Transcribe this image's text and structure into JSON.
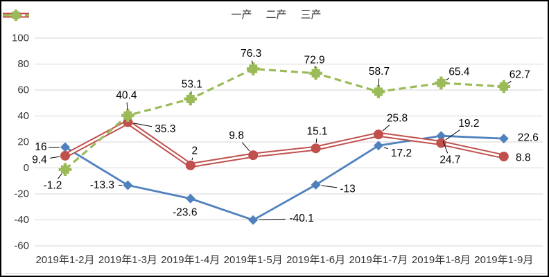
{
  "chart_data": {
    "type": "line",
    "title": "",
    "xlabel": "",
    "ylabel": "",
    "categories": [
      "2019年1-2月",
      "2019年1-3月",
      "2019年1-4月",
      "2019年1-5月",
      "2019年1-6月",
      "2019年1-7月",
      "2019年1-8月",
      "2019年1-9月"
    ],
    "y_axis": {
      "ticks": [
        100,
        80,
        60,
        40,
        20,
        0,
        -20,
        -40,
        -60
      ],
      "min": -60,
      "max": 100
    },
    "grid": true,
    "legend_position": "top",
    "series": [
      {
        "name": "一产",
        "color": "#4F81BD",
        "marker": "diamond",
        "line_style": "solid",
        "values": [
          16,
          -13.3,
          -23.6,
          -40.1,
          -13,
          17.2,
          24.7,
          22.6
        ],
        "labels": [
          "16",
          "-13.3",
          "-23.6",
          "-40.1",
          "-13",
          "17.2",
          "24.7",
          "22.6"
        ],
        "label_offsets": [
          [
            -35,
            0
          ],
          [
            -37,
            0
          ],
          [
            -8,
            20
          ],
          [
            70,
            -2
          ],
          [
            46,
            6
          ],
          [
            33,
            11
          ],
          [
            13,
            35
          ],
          [
            35,
            -1
          ]
        ],
        "label_leaders": [
          true,
          true,
          false,
          true,
          true,
          true,
          true,
          false
        ]
      },
      {
        "name": "二产",
        "color": "#C0504D",
        "marker": "circle",
        "line_style": "double",
        "values": [
          9.4,
          35.3,
          2,
          9.8,
          15.1,
          25.8,
          19.2,
          8.8
        ],
        "labels": [
          "9.4",
          "35.3",
          "2",
          "9.8",
          "15.1",
          "25.8",
          "19.2",
          "8.8"
        ],
        "label_offsets": [
          [
            -37,
            6
          ],
          [
            54,
            10
          ],
          [
            6,
            -21
          ],
          [
            -24,
            -28
          ],
          [
            2,
            -24
          ],
          [
            27,
            -23
          ],
          [
            40,
            -28
          ],
          [
            28,
            2
          ]
        ],
        "label_leaders": [
          true,
          true,
          true,
          true,
          true,
          true,
          true,
          false
        ]
      },
      {
        "name": "三产",
        "color": "#9BBB59",
        "marker": "square-x",
        "line_style": "dashed",
        "values": [
          -1.2,
          40.4,
          53.1,
          76.3,
          72.9,
          58.7,
          65.4,
          62.7
        ],
        "labels": [
          "-1.2",
          "40.4",
          "53.1",
          "76.3",
          "72.9",
          "58.7",
          "65.4",
          "62.7"
        ],
        "label_offsets": [
          [
            -18,
            23
          ],
          [
            -2,
            -29
          ],
          [
            2,
            -21
          ],
          [
            -3,
            -22
          ],
          [
            -2,
            -19
          ],
          [
            1,
            -29
          ],
          [
            26,
            -16
          ],
          [
            23,
            -17
          ]
        ],
        "label_leaders": [
          true,
          true,
          true,
          true,
          true,
          true,
          true,
          true
        ]
      }
    ]
  },
  "colors": {
    "background": "#FFFFFF",
    "border": "#000000",
    "grid": "#D6D6D6",
    "axis_text": "#333333",
    "label_text": "#000000",
    "leader": "#000000"
  }
}
